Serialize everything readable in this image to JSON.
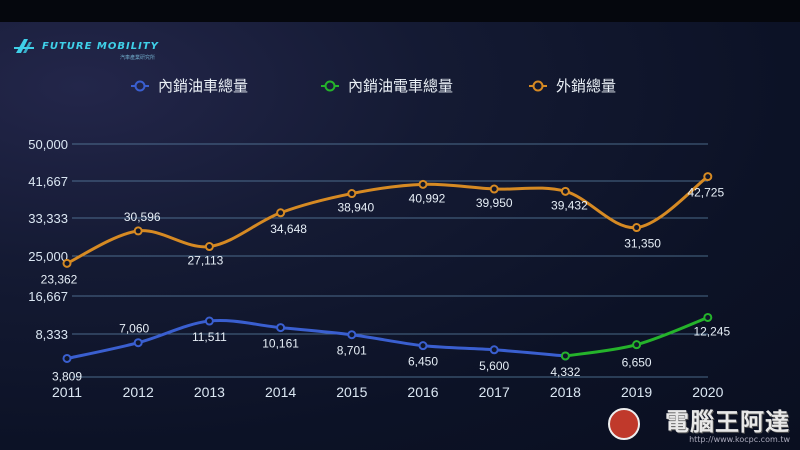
{
  "brand": {
    "name": "FUTURE MOBILITY",
    "sub": "汽車產業研究所"
  },
  "watermark": {
    "name": "電腦王阿達",
    "url": "http://www.kocpc.com.tw"
  },
  "colors": {
    "blue": "#3a5fd0",
    "green": "#25b32b",
    "orange": "#d68a23",
    "grid": "#5e86a8"
  },
  "chart_data": {
    "type": "line",
    "title": "",
    "xlabel": "",
    "ylabel": "",
    "x": [
      "2011",
      "2012",
      "2013",
      "2014",
      "2015",
      "2016",
      "2017",
      "2018",
      "2019",
      "2020"
    ],
    "y_ticks": [
      "50,000",
      "41,667",
      "33,333",
      "25,000",
      "16,667",
      "8,333"
    ],
    "grid": true,
    "legend_position": "top",
    "series": [
      {
        "name": "內銷油車總量",
        "color": "#3a5fd0",
        "x": [
          "2011",
          "2012",
          "2013",
          "2014",
          "2015",
          "2016",
          "2017",
          "2018"
        ],
        "values": [
          3809,
          7060,
          11511,
          10161,
          8701,
          6450,
          5600,
          4332
        ],
        "labels": [
          "3,809",
          "7,060",
          "11,511",
          "10,161",
          "8,701",
          "6,450",
          "5,600",
          "4,332"
        ]
      },
      {
        "name": "內銷油電車總量",
        "color": "#25b32b",
        "x": [
          "2018",
          "2019",
          "2020"
        ],
        "values": [
          4332,
          6650,
          12245
        ],
        "labels": [
          "",
          "6,650",
          "12,245"
        ]
      },
      {
        "name": "外銷總量",
        "color": "#d68a23",
        "x": [
          "2011",
          "2012",
          "2013",
          "2014",
          "2015",
          "2016",
          "2017",
          "2018",
          "2019",
          "2020"
        ],
        "values": [
          23362,
          30596,
          27113,
          34648,
          38940,
          40992,
          39950,
          39432,
          31350,
          42725
        ],
        "labels": [
          "23,362",
          "30,596",
          "27,113",
          "34,648",
          "38,940",
          "40,992",
          "39,950",
          "39,432",
          "31,350",
          "42,725"
        ]
      }
    ]
  }
}
